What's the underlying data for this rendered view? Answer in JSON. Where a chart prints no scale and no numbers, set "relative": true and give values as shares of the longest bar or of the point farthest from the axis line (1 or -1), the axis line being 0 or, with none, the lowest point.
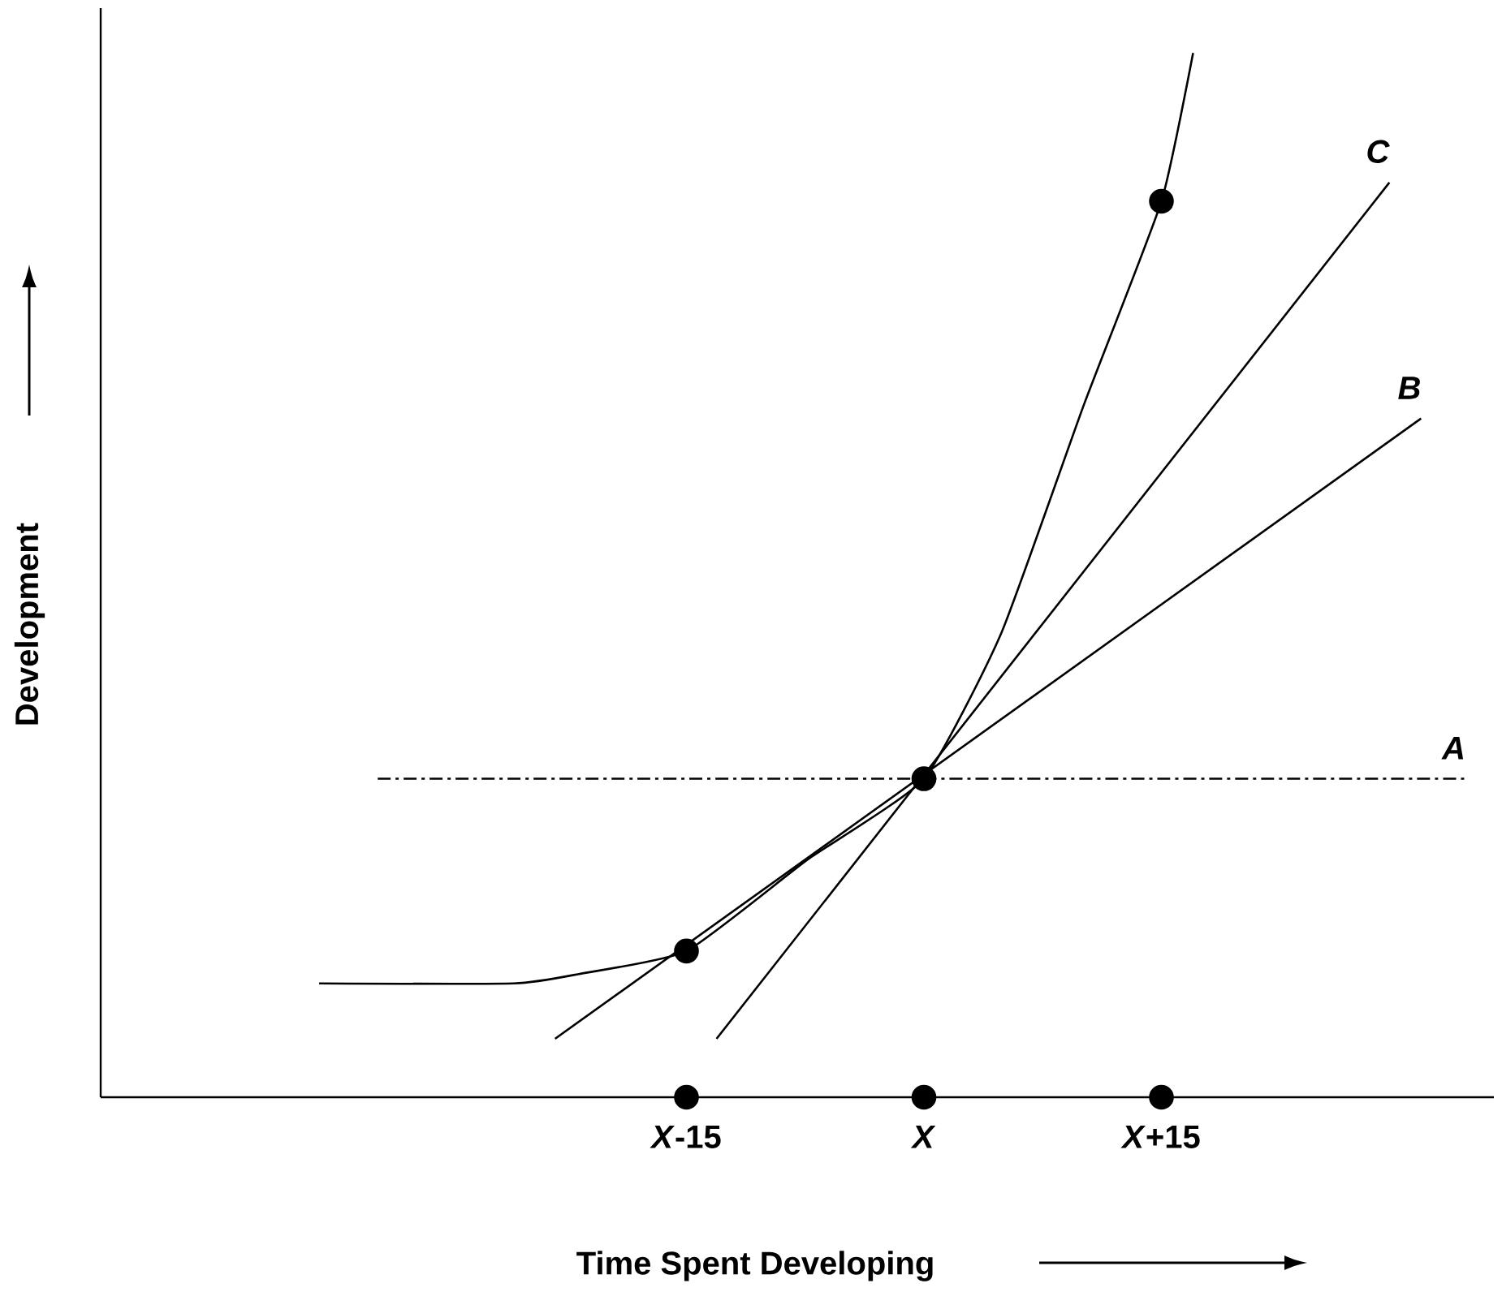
{
  "chart_data": {
    "type": "line",
    "relative": true,
    "xlabel": "Time Spent Developing",
    "ylabel": "Development",
    "xlim": [
      -52,
      36
    ],
    "xticks": [
      {
        "value": -15,
        "label": "*X*-15"
      },
      {
        "value": 0,
        "label": "*X*"
      },
      {
        "value": 15,
        "label": "*X*+15"
      }
    ],
    "tick_labels": "x",
    "series": [
      {
        "name": "A",
        "color": "#000000",
        "line_style": "dashed",
        "marker": "none",
        "x": [
          -34.5,
          34.2
        ],
        "values": [
          0.305,
          0.305
        ]
      },
      {
        "name": "B",
        "color": "#000000",
        "line_style": "solid",
        "marker": "none",
        "x": [
          -23.3,
          31.4
        ],
        "values": [
          0.056,
          0.65
        ]
      },
      {
        "name": "C",
        "color": "#000000",
        "line_style": "solid",
        "marker": "none",
        "x": [
          -13.1,
          29.4
        ],
        "values": [
          0.056,
          0.876
        ]
      },
      {
        "color": "#000000",
        "line_style": "solid",
        "marker": "none",
        "x": [
          -38.2,
          -25.9,
          -21.8,
          -15,
          -7.4,
          0,
          4.9,
          10.1,
          15,
          17
        ],
        "values": [
          0.109,
          0.109,
          0.118,
          0.14,
          0.227,
          0.305,
          0.445,
          0.663,
          0.858,
          1.0
        ]
      },
      {
        "type": "scatter",
        "color": "#000000",
        "marker": "circle",
        "x": [
          -15,
          0,
          15
        ],
        "values": [
          0.14,
          0.305,
          0.858
        ]
      },
      {
        "type": "scatter",
        "color": "#000000",
        "marker": "circle",
        "x": [
          -15,
          0,
          15
        ],
        "values": [
          0,
          0,
          0
        ]
      }
    ]
  }
}
